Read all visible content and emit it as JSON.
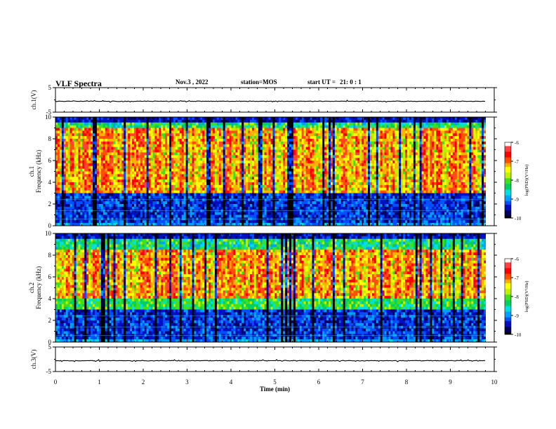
{
  "chart_data": {
    "type": "heatmap",
    "title": "VLF Spectra",
    "header": {
      "date": "Nov.3 , 2022",
      "station_label": "station=",
      "station": "MOS",
      "start_label": "start UT =",
      "start_time": "21: 0 : 1"
    },
    "xlabel": "Time (min)",
    "xlim": [
      0,
      10
    ],
    "xticks": [
      "0",
      "1",
      "2",
      "3",
      "4",
      "5",
      "6",
      "7",
      "8",
      "9",
      "10"
    ],
    "panels": [
      {
        "type": "line",
        "ylabel": "ch.1(V)",
        "ylim": [
          -5,
          5
        ],
        "yticks": [
          "5",
          "-5"
        ],
        "baseline": 0,
        "values_description": "near-constant waveform"
      },
      {
        "type": "heatmap",
        "ylabel": "Frequency (kHz)",
        "channel_label": "ch.1",
        "ylim": [
          0,
          10
        ],
        "yticks": [
          "0",
          "2",
          "4",
          "6",
          "8",
          "10"
        ],
        "intense_band_khz": [
          3,
          9
        ],
        "weak_band_khz": [
          0.3,
          3
        ],
        "colorbar": {
          "label": "log(PSD)(V²/Hz)",
          "range": [
            -10,
            -6
          ],
          "ticks": [
            "-6",
            "-7",
            "-8",
            "-9",
            "-10"
          ]
        }
      },
      {
        "type": "heatmap",
        "ylabel": "Frequency (kHz)",
        "channel_label": "ch.2",
        "ylim": [
          0,
          10
        ],
        "yticks": [
          "0",
          "2",
          "4",
          "6",
          "8",
          "10"
        ],
        "intense_band_khz": [
          4,
          8.5
        ],
        "weak_band_khz": [
          0.3,
          3
        ],
        "colorbar": {
          "label": "log(PSD)(V²/Hz)",
          "range": [
            -10,
            -6
          ],
          "ticks": [
            "-6",
            "-7",
            "-8",
            "-9",
            "-10"
          ]
        }
      },
      {
        "type": "line",
        "ylabel": "ch.3(V)",
        "ylim": [
          -5,
          5
        ],
        "yticks": [
          "5",
          "-5"
        ],
        "baseline": 0,
        "values_description": "near-constant waveform"
      }
    ],
    "colormap": [
      "#000000",
      "#000060",
      "#0010c0",
      "#0050ff",
      "#00a0ff",
      "#00e0e0",
      "#00d060",
      "#40e020",
      "#c0f000",
      "#ffff00",
      "#ffb000",
      "#ff5000",
      "#ff0000",
      "#ff4040",
      "#ffffff"
    ]
  }
}
